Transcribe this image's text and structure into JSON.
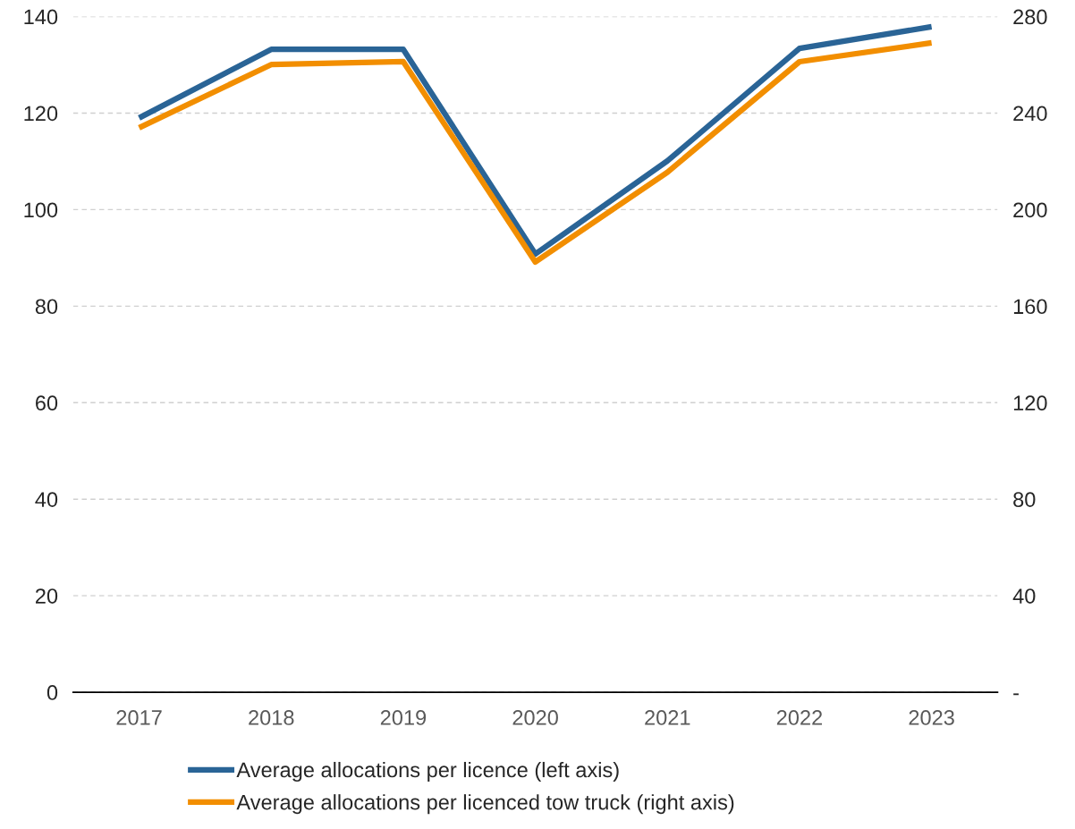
{
  "chart_data": {
    "type": "line",
    "categories": [
      "2017",
      "2018",
      "2019",
      "2020",
      "2021",
      "2022",
      "2023"
    ],
    "series": [
      {
        "name": "Average allocations per licence (left axis)",
        "color": "#2a6496",
        "values": [
          119,
          133.2,
          133.2,
          90.8,
          110.1,
          133.4,
          137.9
        ]
      },
      {
        "name": "Average allocations per licenced tow truck (right axis)",
        "color": "#f28e00",
        "values": [
          233.9,
          260.1,
          261.3,
          178.3,
          215.5,
          261.3,
          269.1
        ],
        "axis": "y2"
      }
    ],
    "ylim": [
      0,
      140
    ],
    "yticks": [
      0,
      20,
      40,
      60,
      80,
      100,
      120,
      140
    ],
    "y2lim": [
      0,
      280
    ],
    "y2ticks": [
      {
        "value": 0,
        "label": "-"
      },
      40,
      80,
      120,
      160,
      200,
      240,
      280
    ],
    "grid": "y",
    "legend": "bottom",
    "marker": "none",
    "line_style": "solid"
  }
}
